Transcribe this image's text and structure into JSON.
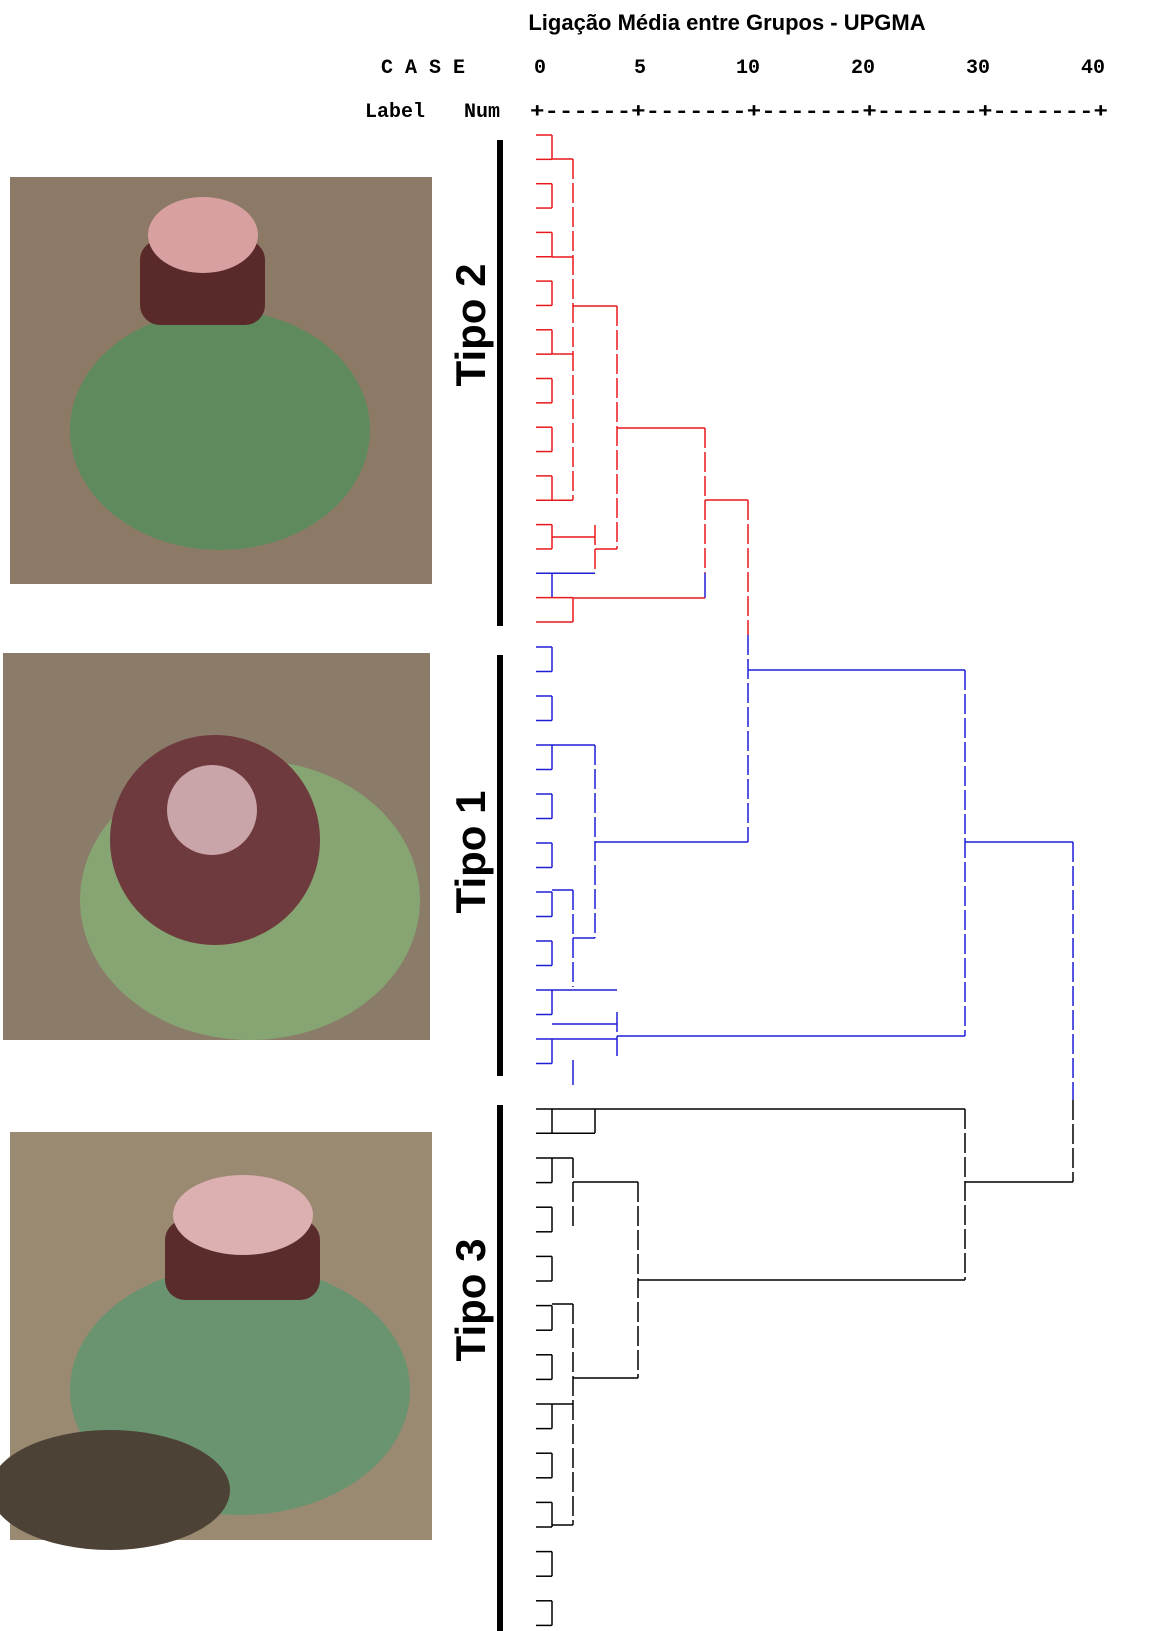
{
  "title": "Ligação Média entre Grupos - UPGMA",
  "header": {
    "case": "C A S E",
    "label": "Label",
    "num": "Num",
    "scale": "+------+-------+-------+-------+-------+"
  },
  "axis": {
    "ticks": [
      "0",
      "5",
      "10",
      "20",
      "30",
      "40"
    ]
  },
  "groups": [
    {
      "label": "Tipo 2"
    },
    {
      "label": "Tipo 1"
    },
    {
      "label": "Tipo 3"
    }
  ]
}
